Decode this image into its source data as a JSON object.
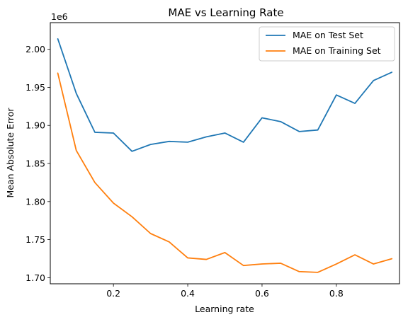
{
  "chart_data": {
    "type": "line",
    "title": "MAE vs Learning Rate",
    "xlabel": "Learning rate",
    "ylabel": "Mean Absolute Error",
    "y_offset_label": "1e6",
    "xlim": [
      0.03,
      0.97
    ],
    "ylim": [
      1.692,
      2.035
    ],
    "x_ticks": [
      0.2,
      0.4,
      0.6,
      0.8
    ],
    "x_tick_labels": [
      "0.2",
      "0.4",
      "0.6",
      "0.8"
    ],
    "y_ticks": [
      1.7,
      1.75,
      1.8,
      1.85,
      1.9,
      1.95,
      2.0
    ],
    "y_tick_labels": [
      "1.70",
      "1.75",
      "1.80",
      "1.85",
      "1.90",
      "1.95",
      "2.00"
    ],
    "grid": false,
    "legend_position": "top-right",
    "x": [
      0.05,
      0.1,
      0.15,
      0.2,
      0.25,
      0.3,
      0.35,
      0.4,
      0.45,
      0.5,
      0.55,
      0.6,
      0.65,
      0.7,
      0.75,
      0.8,
      0.85,
      0.9,
      0.95
    ],
    "series": [
      {
        "name": "MAE on Test Set",
        "color": "#1f77b4",
        "values": [
          2.014,
          1.942,
          1.891,
          1.89,
          1.866,
          1.875,
          1.879,
          1.878,
          1.885,
          1.89,
          1.878,
          1.91,
          1.905,
          1.892,
          1.894,
          1.94,
          1.929,
          1.959,
          1.97
        ]
      },
      {
        "name": "MAE on Training Set",
        "color": "#ff7f0e",
        "values": [
          1.969,
          1.867,
          1.825,
          1.798,
          1.78,
          1.758,
          1.747,
          1.726,
          1.724,
          1.733,
          1.716,
          1.718,
          1.719,
          1.708,
          1.707,
          1.718,
          1.73,
          1.718,
          1.725
        ]
      }
    ]
  }
}
